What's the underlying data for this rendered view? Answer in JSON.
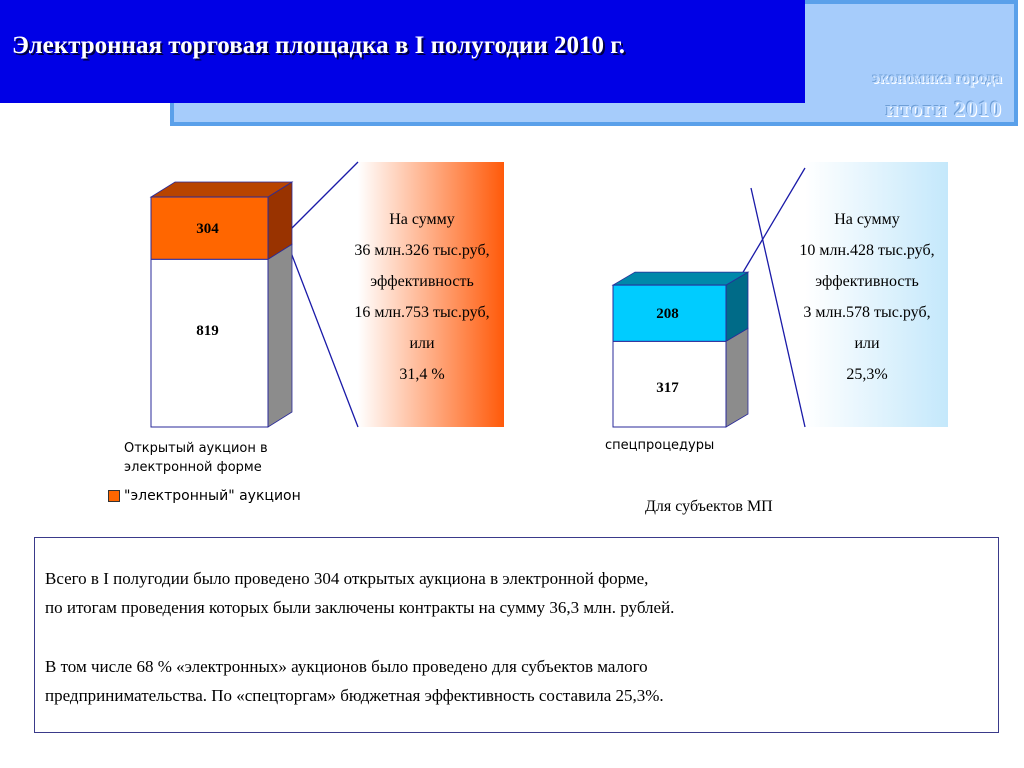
{
  "header": {
    "title": "Электронная торговая площадка в I полугодии 2010 г."
  },
  "brand": {
    "line1": "экономика города",
    "line2": "итоги  2010"
  },
  "colors": {
    "header_bg": "#0000e6",
    "orange": "#ff6600",
    "cyan": "#00ccff",
    "side_gray": "#8c8c8c"
  },
  "chart_data": [
    {
      "type": "bar",
      "stacked": true,
      "categories": [
        "Открытый аукцион в электронной форме"
      ],
      "series": [
        {
          "name": "",
          "values": [
            819
          ],
          "color": "#ffffff"
        },
        {
          "name": "\"электронный\" аукцион",
          "values": [
            304
          ],
          "color": "#ff6600"
        }
      ],
      "labels": {
        "bottom": "819",
        "top": "304"
      },
      "category_label": {
        "line1": "Открытый аукцион в",
        "line2": "электронной форме"
      },
      "legend": {
        "label": "\"электронный\" аукцион"
      },
      "callout": [
        "На сумму",
        "36 млн.326 тыс.руб,",
        "эффективность",
        "16 млн.753 тыс.руб,",
        "или",
        "31,4 %"
      ]
    },
    {
      "type": "bar",
      "stacked": true,
      "categories": [
        "спецпроцедуры"
      ],
      "series": [
        {
          "name": "",
          "values": [
            317
          ],
          "color": "#ffffff"
        },
        {
          "name": "Для субъектов МП",
          "values": [
            208
          ],
          "color": "#00ccff"
        }
      ],
      "labels": {
        "bottom": "317",
        "top": "208"
      },
      "category_label": {
        "line1": "спецпроцедуры"
      },
      "caption": "Для субъектов МП",
      "callout": [
        "На сумму",
        "10 млн.428 тыс.руб,",
        "эффективность",
        "3 млн.578 тыс.руб,",
        "или",
        "25,3%"
      ]
    }
  ],
  "summary": {
    "p1_line1": "Всего в I полугодии было проведено 304 открытых аукциона в электронной форме,",
    "p1_line2": "по итогам проведения которых были заключены контракты на сумму 36,3 млн. рублей.",
    "p2_line1": "В том числе 68 % «электронных» аукционов было проведено для субъектов малого",
    "p2_line2": "предпринимательства. По «спецторгам» бюджетная эффективность составила 25,3%."
  }
}
